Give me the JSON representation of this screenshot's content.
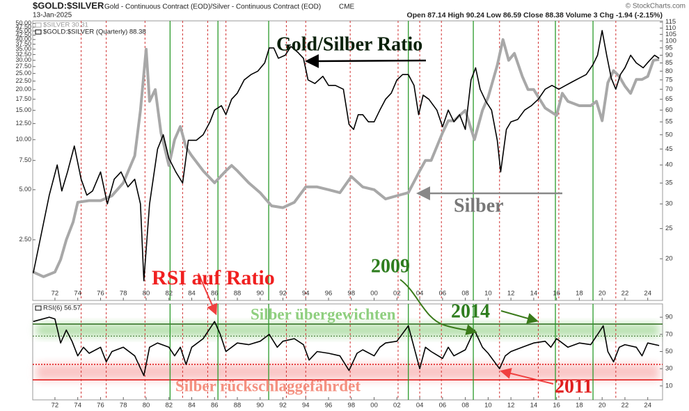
{
  "header": {
    "symbol": "$GOLD:$SILVER",
    "description": "Gold - Continuous Contract (EOD)/Silver - Continuous Contract (EOD)",
    "exchange": "CME",
    "date": "13-Jan-2025",
    "quote": "Open 87.14  High 90.24  Low 86.59  Close 88.38  Volume 3  Chg -1.94 (-2.15%)",
    "credit": "© StockCharts.com"
  },
  "chart_data": [
    {
      "type": "line",
      "annotations": [
        "Gold/Silber Ratio",
        "Silber",
        "RSI auf Ratio",
        "2009"
      ],
      "xlim": [
        1970.05,
        2025.3
      ],
      "xticks": [
        {
          "value": 1972,
          "label": "72"
        },
        {
          "value": 1974,
          "label": "74"
        },
        {
          "value": 1976,
          "label": "76"
        },
        {
          "value": 1978,
          "label": "78"
        },
        {
          "value": 1980,
          "label": "80"
        },
        {
          "value": 1982,
          "label": "82"
        },
        {
          "value": 1984,
          "label": "84"
        },
        {
          "value": 1986,
          "label": "86"
        },
        {
          "value": 1988,
          "label": "88"
        },
        {
          "value": 1990,
          "label": "90"
        },
        {
          "value": 1992,
          "label": "92"
        },
        {
          "value": 1994,
          "label": "94"
        },
        {
          "value": 1996,
          "label": "96"
        },
        {
          "value": 1998,
          "label": "98"
        },
        {
          "value": 2000,
          "label": "00"
        },
        {
          "value": 2002,
          "label": "02"
        },
        {
          "value": 2004,
          "label": "04"
        },
        {
          "value": 2006,
          "label": "06"
        },
        {
          "value": 2008,
          "label": "08"
        },
        {
          "value": 2010,
          "label": "10"
        },
        {
          "value": 2012,
          "label": "12"
        },
        {
          "value": 2014,
          "label": "14"
        },
        {
          "value": 2016,
          "label": "16"
        },
        {
          "value": 2018,
          "label": "18"
        },
        {
          "value": 2020,
          "label": "20"
        },
        {
          "value": 2022,
          "label": "22"
        },
        {
          "value": 2024,
          "label": "24"
        }
      ],
      "ylim": [
        1.08,
        51.8
      ],
      "log_scale": true,
      "yticks": [
        {
          "value": 50,
          "label": "50.00"
        },
        {
          "value": 47.5,
          "label": "47.50"
        },
        {
          "value": 45,
          "label": "45.00"
        },
        {
          "value": 42.5,
          "label": "42.50"
        },
        {
          "value": 40,
          "label": "40.00"
        },
        {
          "value": 37.5,
          "label": "37.50"
        },
        {
          "value": 35,
          "label": "35.00"
        },
        {
          "value": 32.5,
          "label": "32.50"
        },
        {
          "value": 30,
          "label": "30.00"
        },
        {
          "value": 27.5,
          "label": "27.50"
        },
        {
          "value": 25,
          "label": "25.00"
        },
        {
          "value": 22.5,
          "label": "22.50"
        },
        {
          "value": 20,
          "label": "20.00"
        },
        {
          "value": 17.5,
          "label": "17.50"
        },
        {
          "value": 15,
          "label": "15.00"
        },
        {
          "value": 12.5,
          "label": "12.50"
        },
        {
          "value": 10,
          "label": "10.00"
        },
        {
          "value": 7.5,
          "label": "7.50"
        },
        {
          "value": 5,
          "label": "5.00"
        },
        {
          "value": 2.5,
          "label": "2.50"
        }
      ],
      "y2lim": [
        14.7,
        116
      ],
      "y2ticks": [
        115,
        110,
        105,
        100,
        95,
        90,
        85,
        80,
        75,
        70,
        65,
        60,
        55,
        50,
        45,
        40,
        35,
        30,
        25,
        20
      ],
      "green_lines": [
        1982.1,
        1986.3,
        1990.75,
        2003.0,
        2008.7,
        2015.9,
        2019.2
      ],
      "red_lines": [
        1974.3,
        1976.5,
        1979.9,
        1983.2,
        1985.4,
        1987.0,
        1992.3,
        1994.0,
        1997.9,
        2002.1,
        2004.0,
        2005.9,
        2011.0,
        2014.4,
        2016.2,
        2021.2
      ],
      "series": [
        {
          "name": "$SILVER 30.31",
          "color": "#a8a8a8",
          "axis": "y",
          "x": [
            1970.1,
            1971,
            1972,
            1972.5,
            1973,
            1973.6,
            1974,
            1975,
            1976,
            1977,
            1978,
            1979,
            1979.5,
            1980,
            1980.3,
            1980.8,
            1981.3,
            1982,
            1982.5,
            1983,
            1983.5,
            1984,
            1985,
            1986,
            1987,
            1987.5,
            1988,
            1989,
            1990,
            1991,
            1992,
            1993,
            1994,
            1995,
            1996,
            1997,
            1998,
            1999,
            2000,
            2001,
            2002,
            2003,
            2004,
            2004.5,
            2005,
            2006,
            2006.5,
            2007,
            2008,
            2008.8,
            2009.5,
            2010,
            2010.8,
            2011.3,
            2011.8,
            2012.3,
            2013,
            2013.5,
            2014,
            2015,
            2016,
            2016.5,
            2017,
            2018,
            2019,
            2019.5,
            2020,
            2020.5,
            2021,
            2021.5,
            2022,
            2022.5,
            2023,
            2023.5,
            2024,
            2024.5,
            2025
          ],
          "values": [
            1.6,
            1.5,
            1.6,
            1.9,
            2.5,
            3.2,
            4.2,
            4.3,
            4.3,
            4.6,
            5.5,
            8,
            15,
            35,
            17,
            20,
            11,
            7,
            10,
            12,
            9,
            8,
            6.5,
            5.5,
            6.5,
            7,
            6.5,
            5.5,
            4.8,
            4,
            3.9,
            4.2,
            5.2,
            5.2,
            5,
            4.8,
            6,
            5.2,
            5,
            4.4,
            4.6,
            4.8,
            6.5,
            7.5,
            7.5,
            11,
            13,
            13,
            15,
            10,
            15,
            18,
            28,
            40,
            30,
            33,
            24,
            20,
            20,
            15.5,
            14,
            19,
            17,
            16,
            16,
            17,
            13,
            22,
            26,
            24,
            21,
            19,
            23,
            23,
            24,
            30,
            30.3
          ]
        },
        {
          "name": "$GOLD:$SILVER (Quarterly) 88.38",
          "color": "#000000",
          "axis": "y2",
          "x": [
            1970.1,
            1970.8,
            1971.5,
            1972.2,
            1972.6,
            1973.1,
            1973.7,
            1974.3,
            1974.8,
            1975.3,
            1976,
            1976.6,
            1977.2,
            1977.8,
            1978.4,
            1979,
            1979.5,
            1979.8,
            1980.3,
            1981,
            1981.5,
            1982,
            1982.6,
            1983.2,
            1983.7,
            1984.4,
            1985,
            1985.6,
            1986,
            1986.6,
            1987,
            1987.5,
            1988,
            1988.6,
            1989.2,
            1989.8,
            1990.4,
            1990.8,
            1991.2,
            1991.6,
            1992.2,
            1992.7,
            1993.3,
            1993.8,
            1994.2,
            1994.8,
            1995.5,
            1996,
            1996.6,
            1997.3,
            1997.8,
            1998.2,
            1998.6,
            1999,
            1999.5,
            2000,
            2000.5,
            2001,
            2001.5,
            2002,
            2002.5,
            2003,
            2003.5,
            2003.9,
            2004.3,
            2004.8,
            2005.5,
            2006,
            2006.5,
            2007,
            2007.5,
            2008,
            2008.5,
            2008.9,
            2009.3,
            2009.8,
            2010.3,
            2010.8,
            2011.1,
            2011.6,
            2012,
            2012.6,
            2013.2,
            2013.8,
            2014.4,
            2015,
            2015.6,
            2016.2,
            2016.8,
            2017.4,
            2018,
            2018.6,
            2019.2,
            2019.6,
            2020,
            2020.4,
            2020.8,
            2021.2,
            2021.6,
            2022,
            2022.5,
            2023,
            2023.6,
            2024.1,
            2024.6,
            2025
          ],
          "values": [
            18,
            24,
            32,
            40,
            33,
            38,
            46,
            36,
            32,
            33,
            38,
            30,
            36,
            38,
            34,
            36,
            30,
            17,
            30,
            45,
            50,
            42,
            38,
            35,
            48,
            48,
            50,
            55,
            60,
            62,
            58,
            65,
            68,
            75,
            78,
            80,
            85,
            95,
            95,
            88,
            90,
            96,
            92,
            88,
            75,
            73,
            77,
            72,
            72,
            70,
            54,
            52,
            58,
            58,
            55,
            55,
            60,
            65,
            68,
            75,
            78,
            78,
            72,
            58,
            67,
            65,
            60,
            53,
            60,
            55,
            58,
            52,
            75,
            82,
            70,
            64,
            60,
            48,
            38,
            52,
            55,
            56,
            60,
            62,
            65,
            70,
            72,
            70,
            72,
            74,
            76,
            78,
            84,
            90,
            108,
            90,
            76,
            70,
            78,
            82,
            90,
            85,
            82,
            86,
            90,
            88
          ]
        }
      ]
    },
    {
      "type": "line",
      "annotations": [
        "Silber übergewichten",
        "2014",
        "2011",
        "Silber rückschlaggefährdet"
      ],
      "xlim": [
        1970.05,
        2025.3
      ],
      "ylim": [
        -6.3,
        105.5
      ],
      "y2ticks": [
        90,
        70,
        50,
        30,
        10
      ],
      "levels": [
        82,
        68,
        35,
        17
      ],
      "series": [
        {
          "name": "RSI(6) 56.57",
          "color": "#000000",
          "x": [
            1970.1,
            1971.5,
            1972,
            1972.5,
            1973,
            1973.5,
            1974,
            1974.5,
            1975,
            1976,
            1976.5,
            1977,
            1978,
            1979,
            1979.8,
            1980.3,
            1981,
            1982,
            1982.5,
            1983,
            1983.5,
            1984,
            1985,
            1986,
            1986.5,
            1987,
            1988,
            1989,
            1990,
            1990.8,
            1991.5,
            1992,
            1993,
            1993.8,
            1994.3,
            1995,
            1996,
            1997,
            1997.8,
            1998.5,
            1999,
            2000,
            2000.5,
            2001,
            2002,
            2003,
            2003.5,
            2004,
            2004.5,
            2005,
            2006,
            2006.5,
            2007,
            2008,
            2008.8,
            2009.5,
            2010,
            2011,
            2011.5,
            2012,
            2013,
            2014,
            2015,
            2015.5,
            2016,
            2017,
            2018,
            2019,
            2019.7,
            2020.1,
            2020.5,
            2021,
            2021.5,
            2022,
            2023,
            2023.5,
            2024,
            2025
          ],
          "values": [
            85,
            90,
            88,
            60,
            75,
            62,
            45,
            55,
            48,
            55,
            38,
            50,
            55,
            45,
            22,
            55,
            60,
            55,
            45,
            55,
            35,
            55,
            65,
            85,
            70,
            50,
            60,
            58,
            62,
            70,
            55,
            62,
            65,
            58,
            40,
            50,
            48,
            45,
            28,
            48,
            52,
            45,
            55,
            60,
            62,
            80,
            55,
            30,
            55,
            50,
            42,
            55,
            45,
            52,
            75,
            55,
            48,
            30,
            45,
            50,
            55,
            60,
            62,
            55,
            65,
            55,
            60,
            58,
            72,
            80,
            50,
            38,
            55,
            58,
            55,
            45,
            60,
            57
          ]
        }
      ]
    }
  ]
}
